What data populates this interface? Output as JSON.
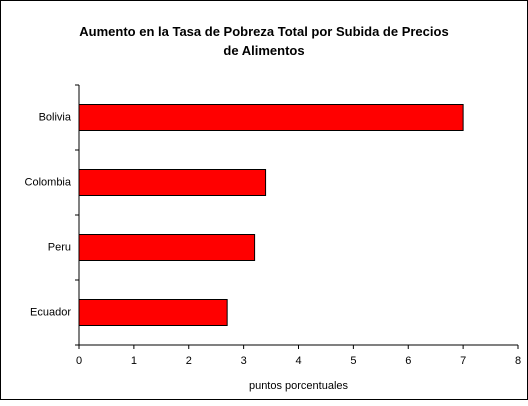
{
  "chart_data": {
    "type": "barh",
    "title": "Aumento en la Tasa de Pobreza Total por Subida de Precios de Alimentos",
    "categories": [
      "Bolivia",
      "Colombia",
      "Peru",
      "Ecuador"
    ],
    "values": [
      7.0,
      3.4,
      3.2,
      2.7
    ],
    "color": "#ff0000",
    "xlabel": "puntos porcentuales",
    "xlim": [
      0,
      8
    ],
    "xticks": [
      0,
      1,
      2,
      3,
      4,
      5,
      6,
      7,
      8
    ],
    "grid": false
  }
}
